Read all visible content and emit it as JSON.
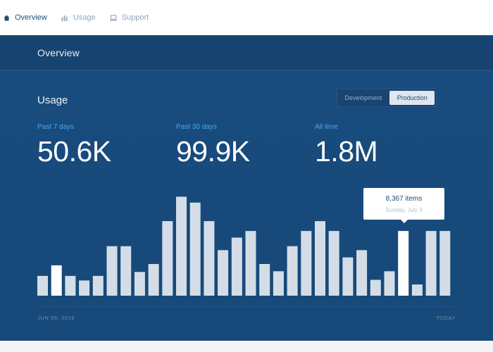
{
  "nav": {
    "items": [
      {
        "label": "Overview",
        "icon": "home-icon",
        "active": true
      },
      {
        "label": "Usage",
        "icon": "bar-chart-icon",
        "active": false
      },
      {
        "label": "Support",
        "icon": "laptop-icon",
        "active": false
      }
    ]
  },
  "panel": {
    "title": "Overview",
    "usage_title": "Usage",
    "env_toggle": {
      "development": "Development",
      "production": "Production",
      "selected": "Production"
    }
  },
  "stats": [
    {
      "label": "Past 7 days",
      "value": "50.6K"
    },
    {
      "label": "Past 30 days",
      "value": "99.9K"
    },
    {
      "label": "All time",
      "value": "1.8M"
    }
  ],
  "tooltip": {
    "items": "8,367 items",
    "date": "Sunday, July 3"
  },
  "axis": {
    "start": "JUN 06, 2016",
    "end": "TODAY"
  },
  "colors": {
    "panel_bg": "#1a4d7f",
    "accent_label": "#4aa7e6",
    "bar": "#d4dde7",
    "bar_highlight": "#ffffff"
  },
  "chart_data": {
    "type": "bar",
    "values": [
      30,
      46,
      30,
      23,
      30,
      75,
      75,
      36,
      48,
      113,
      150,
      141,
      113,
      69,
      88,
      98,
      48,
      37,
      75,
      98,
      113,
      98,
      58,
      69,
      24,
      37,
      98,
      17,
      98,
      98
    ],
    "highlighted": [
      1,
      26
    ],
    "ylim": [
      0,
      160
    ]
  }
}
